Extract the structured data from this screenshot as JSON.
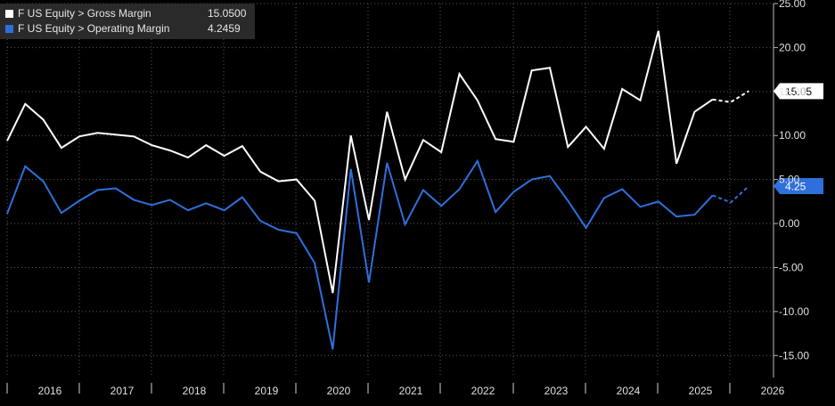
{
  "legend": {
    "items": [
      {
        "label": "F US Equity > Gross Margin",
        "value": "15.0500",
        "color": "#ffffff"
      },
      {
        "label": "F US Equity > Operating Margin",
        "value": "4.2459",
        "color": "#2f6fdc"
      }
    ]
  },
  "chart_data": {
    "type": "line",
    "x_ticks": [
      "2016",
      "2017",
      "2018",
      "2019",
      "2020",
      "2021",
      "2022",
      "2023",
      "2024",
      "2025",
      "2026"
    ],
    "y_ticks": [
      "25.00",
      "20.00",
      "15.00",
      "10.00",
      "5.00",
      "0.00",
      "-5.00",
      "-10.00",
      "-15.00"
    ],
    "ylim": [
      -17.5,
      25
    ],
    "x_start": "2015-Q3",
    "series": [
      {
        "name": "F US Equity > Gross Margin",
        "color": "#ffffff",
        "last_value_label": "15.05",
        "values": [
          9.4,
          13.6,
          11.8,
          8.6,
          9.9,
          10.3,
          10.1,
          9.9,
          8.9,
          8.3,
          7.5,
          8.9,
          7.7,
          8.8,
          5.9,
          4.8,
          5.0,
          2.6,
          -7.9,
          10.0,
          0.4,
          12.7,
          5.0,
          9.5,
          8.1,
          17.0,
          14.0,
          9.6,
          9.3,
          17.4,
          17.7,
          8.7,
          11.0,
          8.5,
          15.3,
          14.0,
          21.9,
          6.8,
          12.7,
          14.1
        ],
        "estimates": [
          14.1,
          13.8,
          15.05
        ]
      },
      {
        "name": "F US Equity > Operating Margin",
        "color": "#2f6fdc",
        "last_value_label": "4.25",
        "values": [
          1.1,
          6.5,
          4.8,
          1.2,
          2.6,
          3.8,
          4.0,
          2.7,
          2.1,
          2.7,
          1.5,
          2.3,
          1.5,
          3.0,
          0.3,
          -0.7,
          -1.1,
          -4.5,
          -14.3,
          6.2,
          -6.7,
          6.9,
          -0.1,
          3.8,
          2.0,
          3.9,
          7.1,
          1.3,
          3.6,
          5.0,
          5.4,
          2.6,
          -0.5,
          2.9,
          3.9,
          1.9,
          2.5,
          0.8,
          1.0,
          3.2
        ],
        "estimates": [
          3.2,
          2.4,
          4.25
        ]
      }
    ],
    "grid": true
  }
}
